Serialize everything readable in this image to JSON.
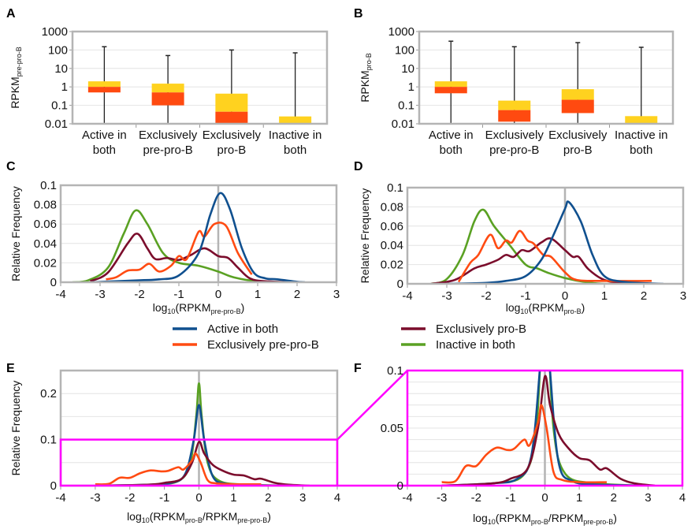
{
  "colors": {
    "active": "#10508f",
    "pre": "#ff4b12",
    "pro": "#7b0d2c",
    "inactive": "#5aa123",
    "box_lower": "#ff4a10",
    "box_upper": "#ffd21f",
    "zoom_box": "#ff00ff",
    "frame": "#b4b4b4"
  },
  "legend": [
    {
      "label": "Active in both",
      "key": "active"
    },
    {
      "label": "Exclusively pre-pro-B",
      "key": "pre"
    },
    {
      "label": "Exclusively pro-B",
      "key": "pro"
    },
    {
      "label": "Inactive in both",
      "key": "inactive"
    }
  ],
  "chart_data": [
    {
      "panel": "A",
      "type": "box",
      "scale": "log",
      "ylabel": "RPKM",
      "ylabel_sub": "pre-pro-B",
      "yticks": [
        "0.01",
        "0.1",
        "1",
        "10",
        "100",
        "1000"
      ],
      "ylim": [
        0.01,
        1000
      ],
      "categories": [
        [
          "Active in",
          "both"
        ],
        [
          "Exclusively",
          "pre-pro-B"
        ],
        [
          "Exclusively",
          "pro-B"
        ],
        [
          "Inactive in",
          "both"
        ]
      ],
      "boxes": [
        {
          "min": 0.01,
          "q1": 0.5,
          "median": 1,
          "q3": 2,
          "max": 150
        },
        {
          "min": 0.01,
          "q1": 0.1,
          "median": 0.5,
          "q3": 1.5,
          "max": 50
        },
        {
          "min": 0.01,
          "q1": 0.01,
          "median": 0.045,
          "q3": 0.43,
          "max": 100
        },
        {
          "min": 0.01,
          "q1": 0.01,
          "median": 0.01,
          "q3": 0.025,
          "max": 70
        }
      ]
    },
    {
      "panel": "B",
      "type": "box",
      "scale": "log",
      "ylabel": "RPKM",
      "ylabel_sub": "pro-B",
      "yticks": [
        "0.01",
        "0.1",
        "1",
        "10",
        "100",
        "1000"
      ],
      "ylim": [
        0.01,
        1000
      ],
      "categories": [
        [
          "Active in",
          "both"
        ],
        [
          "Exclusively",
          "pre-pro-B"
        ],
        [
          "Exclusively",
          "pro-B"
        ],
        [
          "Inactive in",
          "both"
        ]
      ],
      "boxes": [
        {
          "min": 0.01,
          "q1": 0.45,
          "median": 1,
          "q3": 2,
          "max": 300
        },
        {
          "min": 0.01,
          "q1": 0.013,
          "median": 0.055,
          "q3": 0.18,
          "max": 150
        },
        {
          "min": 0.01,
          "q1": 0.038,
          "median": 0.2,
          "q3": 0.75,
          "max": 250
        },
        {
          "min": 0.01,
          "q1": 0.01,
          "median": 0.01,
          "q3": 0.026,
          "max": 140
        }
      ]
    },
    {
      "panel": "C",
      "type": "line",
      "ylabel": "Relative Frequency",
      "xlabel_parts": [
        {
          "t": "log"
        },
        {
          "t": "10",
          "sub": true
        },
        {
          "t": "(RPKM"
        },
        {
          "t": "pre-pro-B",
          "sub": true
        },
        {
          "t": ")"
        }
      ],
      "xlim": [
        -4,
        3
      ],
      "ylim": [
        0,
        0.1
      ],
      "xticks": [
        "-4",
        "-3",
        "-2",
        "-1",
        "0",
        "1",
        "2",
        "3"
      ],
      "yticks": [
        "0",
        "0.02",
        "0.04",
        "0.06",
        "0.08",
        "0.1"
      ],
      "series": [
        {
          "key": "inactive",
          "points": [
            [
              -3.7,
              0
            ],
            [
              -3.3,
              0.002
            ],
            [
              -2.8,
              0.015
            ],
            [
              -2.4,
              0.05
            ],
            [
              -2.1,
              0.074
            ],
            [
              -1.8,
              0.06
            ],
            [
              -1.4,
              0.03
            ],
            [
              -1,
              0.02
            ],
            [
              -0.5,
              0.017
            ],
            [
              0,
              0.011
            ],
            [
              0.4,
              0.005
            ],
            [
              1,
              0.001
            ],
            [
              2,
              0
            ]
          ]
        },
        {
          "key": "pro",
          "points": [
            [
              -3.25,
              0.001
            ],
            [
              -2.8,
              0.01
            ],
            [
              -2.3,
              0.04
            ],
            [
              -2.05,
              0.05
            ],
            [
              -1.8,
              0.035
            ],
            [
              -1.6,
              0.024
            ],
            [
              -1.3,
              0.025
            ],
            [
              -1,
              0.023
            ],
            [
              -0.7,
              0.028
            ],
            [
              -0.35,
              0.035
            ],
            [
              0,
              0.027
            ],
            [
              0.25,
              0.025
            ],
            [
              0.5,
              0.015
            ],
            [
              0.8,
              0.004
            ],
            [
              1.2,
              0.001
            ],
            [
              2,
              0
            ]
          ]
        },
        {
          "key": "pre",
          "points": [
            [
              -2.85,
              0.003
            ],
            [
              -2.6,
              0.005
            ],
            [
              -2.3,
              0.012
            ],
            [
              -2,
              0.013
            ],
            [
              -1.75,
              0.019
            ],
            [
              -1.5,
              0.011
            ],
            [
              -1.2,
              0.017
            ],
            [
              -1,
              0.027
            ],
            [
              -0.8,
              0.024
            ],
            [
              -0.5,
              0.052
            ],
            [
              -0.35,
              0.047
            ],
            [
              -0.1,
              0.06
            ],
            [
              0.2,
              0.058
            ],
            [
              0.5,
              0.03
            ],
            [
              0.85,
              0.008
            ]
          ]
        },
        {
          "key": "active",
          "points": [
            [
              -3.2,
              0
            ],
            [
              -2,
              0.002
            ],
            [
              -1.5,
              0.003
            ],
            [
              -1,
              0.007
            ],
            [
              -0.5,
              0.03
            ],
            [
              -0.2,
              0.07
            ],
            [
              0.05,
              0.092
            ],
            [
              0.3,
              0.075
            ],
            [
              0.6,
              0.035
            ],
            [
              0.9,
              0.01
            ],
            [
              1.2,
              0.004
            ],
            [
              1.5,
              0.003
            ],
            [
              2,
              0.0005
            ],
            [
              2.2,
              0
            ]
          ]
        }
      ]
    },
    {
      "panel": "D",
      "type": "line",
      "ylabel": "Relative Frequency",
      "xlabel_parts": [
        {
          "t": "log"
        },
        {
          "t": "10",
          "sub": true
        },
        {
          "t": "(RPKM"
        },
        {
          "t": "pro-B",
          "sub": true
        },
        {
          "t": ")"
        }
      ],
      "xlim": [
        -4,
        3
      ],
      "ylim": [
        0,
        0.1
      ],
      "xticks": [
        "-4",
        "-3",
        "-2",
        "-1",
        "0",
        "1",
        "2",
        "3"
      ],
      "yticks": [
        "0",
        "0.02",
        "0.04",
        "0.06",
        "0.08",
        "0.1"
      ],
      "series": [
        {
          "key": "inactive",
          "points": [
            [
              -3.4,
              0
            ],
            [
              -3,
              0.005
            ],
            [
              -2.6,
              0.03
            ],
            [
              -2.3,
              0.065
            ],
            [
              -2.07,
              0.077
            ],
            [
              -1.8,
              0.06
            ],
            [
              -1.4,
              0.04
            ],
            [
              -1,
              0.02
            ],
            [
              -0.7,
              0.016
            ],
            [
              -0.4,
              0.011
            ],
            [
              0,
              0.006
            ],
            [
              0.5,
              0.002
            ],
            [
              1,
              0
            ],
            [
              2.2,
              0
            ]
          ]
        },
        {
          "key": "pro",
          "points": [
            [
              -3.4,
              0
            ],
            [
              -2.8,
              0.004
            ],
            [
              -2.3,
              0.016
            ],
            [
              -2,
              0.02
            ],
            [
              -1.7,
              0.025
            ],
            [
              -1.5,
              0.03
            ],
            [
              -1.3,
              0.028
            ],
            [
              -1.1,
              0.035
            ],
            [
              -0.9,
              0.034
            ],
            [
              -0.6,
              0.043
            ],
            [
              -0.35,
              0.047
            ],
            [
              0,
              0.035
            ],
            [
              0.2,
              0.028
            ],
            [
              0.35,
              0.028
            ],
            [
              0.6,
              0.015
            ],
            [
              1,
              0.004
            ],
            [
              1.5,
              0.001
            ],
            [
              2.2,
              0
            ]
          ]
        },
        {
          "key": "pre",
          "points": [
            [
              -2.7,
              0.002
            ],
            [
              -2.4,
              0.022
            ],
            [
              -2.2,
              0.03
            ],
            [
              -1.9,
              0.051
            ],
            [
              -1.7,
              0.037
            ],
            [
              -1.5,
              0.045
            ],
            [
              -1.35,
              0.043
            ],
            [
              -1.15,
              0.055
            ],
            [
              -0.95,
              0.045
            ],
            [
              -0.8,
              0.042
            ],
            [
              -0.55,
              0.03
            ],
            [
              -0.35,
              0.028
            ],
            [
              0,
              0.012
            ],
            [
              0.3,
              0.004
            ],
            [
              1,
              0.003
            ],
            [
              2.2,
              0.003
            ]
          ]
        },
        {
          "key": "active",
          "points": [
            [
              -3,
              0
            ],
            [
              -2,
              0.001
            ],
            [
              -1.5,
              0.003
            ],
            [
              -1,
              0.008
            ],
            [
              -0.6,
              0.025
            ],
            [
              -0.3,
              0.05
            ],
            [
              0,
              0.078
            ],
            [
              0.1,
              0.085
            ],
            [
              0.4,
              0.065
            ],
            [
              0.7,
              0.03
            ],
            [
              1,
              0.008
            ],
            [
              1.5,
              0.002
            ],
            [
              2.5,
              0
            ]
          ]
        }
      ]
    },
    {
      "panel": "E",
      "type": "line",
      "ylabel": "Relative Frequency",
      "xlabel_parts": [
        {
          "t": "log"
        },
        {
          "t": "10",
          "sub": true
        },
        {
          "t": "(RPKM"
        },
        {
          "t": "pro-B",
          "sub": true
        },
        {
          "t": "/RPKM"
        },
        {
          "t": "pre-pro-B",
          "sub": true
        },
        {
          "t": ")"
        }
      ],
      "xlim": [
        -4,
        4
      ],
      "ylim": [
        0,
        0.25
      ],
      "xticks": [
        "-4",
        "-3",
        "-2",
        "-1",
        "0",
        "1",
        "2",
        "3",
        "4"
      ],
      "yticks": [
        "0",
        "0.1",
        "0.2"
      ],
      "zoom_region": {
        "xlim": [
          -4,
          4
        ],
        "ylim": [
          0,
          0.1
        ]
      },
      "series": "ratio"
    },
    {
      "panel": "F",
      "type": "line",
      "ylabel": "",
      "xlabel_parts": [
        {
          "t": "log"
        },
        {
          "t": "10",
          "sub": true
        },
        {
          "t": "(RPKM"
        },
        {
          "t": "pro-B",
          "sub": true
        },
        {
          "t": "/RPKM"
        },
        {
          "t": "pre-pro-B",
          "sub": true
        },
        {
          "t": ")"
        }
      ],
      "xlim": [
        -4,
        4
      ],
      "ylim": [
        0,
        0.1
      ],
      "xticks": [
        "-4",
        "-3",
        "-2",
        "-1",
        "0",
        "1",
        "2",
        "3",
        "4"
      ],
      "yticks": [
        "0",
        "0.05",
        "0.1"
      ],
      "series": "ratio"
    }
  ],
  "ratio_series": [
    {
      "key": "inactive",
      "points": [
        [
          -3,
          0
        ],
        [
          -1.5,
          0.002
        ],
        [
          -0.6,
          0.01
        ],
        [
          -0.25,
          0.05
        ],
        [
          -0.08,
          0.15
        ],
        [
          0,
          0.222
        ],
        [
          0.08,
          0.15
        ],
        [
          0.25,
          0.05
        ],
        [
          0.6,
          0.01
        ],
        [
          1.5,
          0.002
        ],
        [
          3,
          0
        ]
      ]
    },
    {
      "key": "active",
      "points": [
        [
          -3,
          0
        ],
        [
          -1.5,
          0.002
        ],
        [
          -0.8,
          0.006
        ],
        [
          -0.4,
          0.025
        ],
        [
          -0.15,
          0.1
        ],
        [
          0,
          0.175
        ],
        [
          0.15,
          0.1
        ],
        [
          0.4,
          0.02
        ],
        [
          0.8,
          0.004
        ],
        [
          1.5,
          0.001
        ],
        [
          3,
          0
        ]
      ]
    },
    {
      "key": "pro",
      "points": [
        [
          -3,
          0
        ],
        [
          -1.5,
          0.002
        ],
        [
          -1,
          0.006
        ],
        [
          -0.5,
          0.015
        ],
        [
          -0.2,
          0.05
        ],
        [
          0,
          0.095
        ],
        [
          0.15,
          0.07
        ],
        [
          0.4,
          0.045
        ],
        [
          0.7,
          0.032
        ],
        [
          1,
          0.024
        ],
        [
          1.3,
          0.022
        ],
        [
          1.6,
          0.014
        ],
        [
          1.8,
          0.015
        ],
        [
          2.2,
          0.006
        ],
        [
          2.6,
          0.002
        ],
        [
          3.2,
          0
        ]
      ]
    },
    {
      "key": "pre",
      "points": [
        [
          -3,
          0.003
        ],
        [
          -2.6,
          0.004
        ],
        [
          -2.3,
          0.017
        ],
        [
          -2,
          0.017
        ],
        [
          -1.7,
          0.027
        ],
        [
          -1.4,
          0.033
        ],
        [
          -1.1,
          0.031
        ],
        [
          -0.9,
          0.032
        ],
        [
          -0.6,
          0.04
        ],
        [
          -0.45,
          0.035
        ],
        [
          -0.2,
          0.055
        ],
        [
          -0.1,
          0.07
        ],
        [
          0.05,
          0.05
        ],
        [
          0.25,
          0.012
        ],
        [
          0.5,
          0.005
        ],
        [
          1,
          0.003
        ],
        [
          1.8,
          0.003
        ]
      ]
    }
  ]
}
